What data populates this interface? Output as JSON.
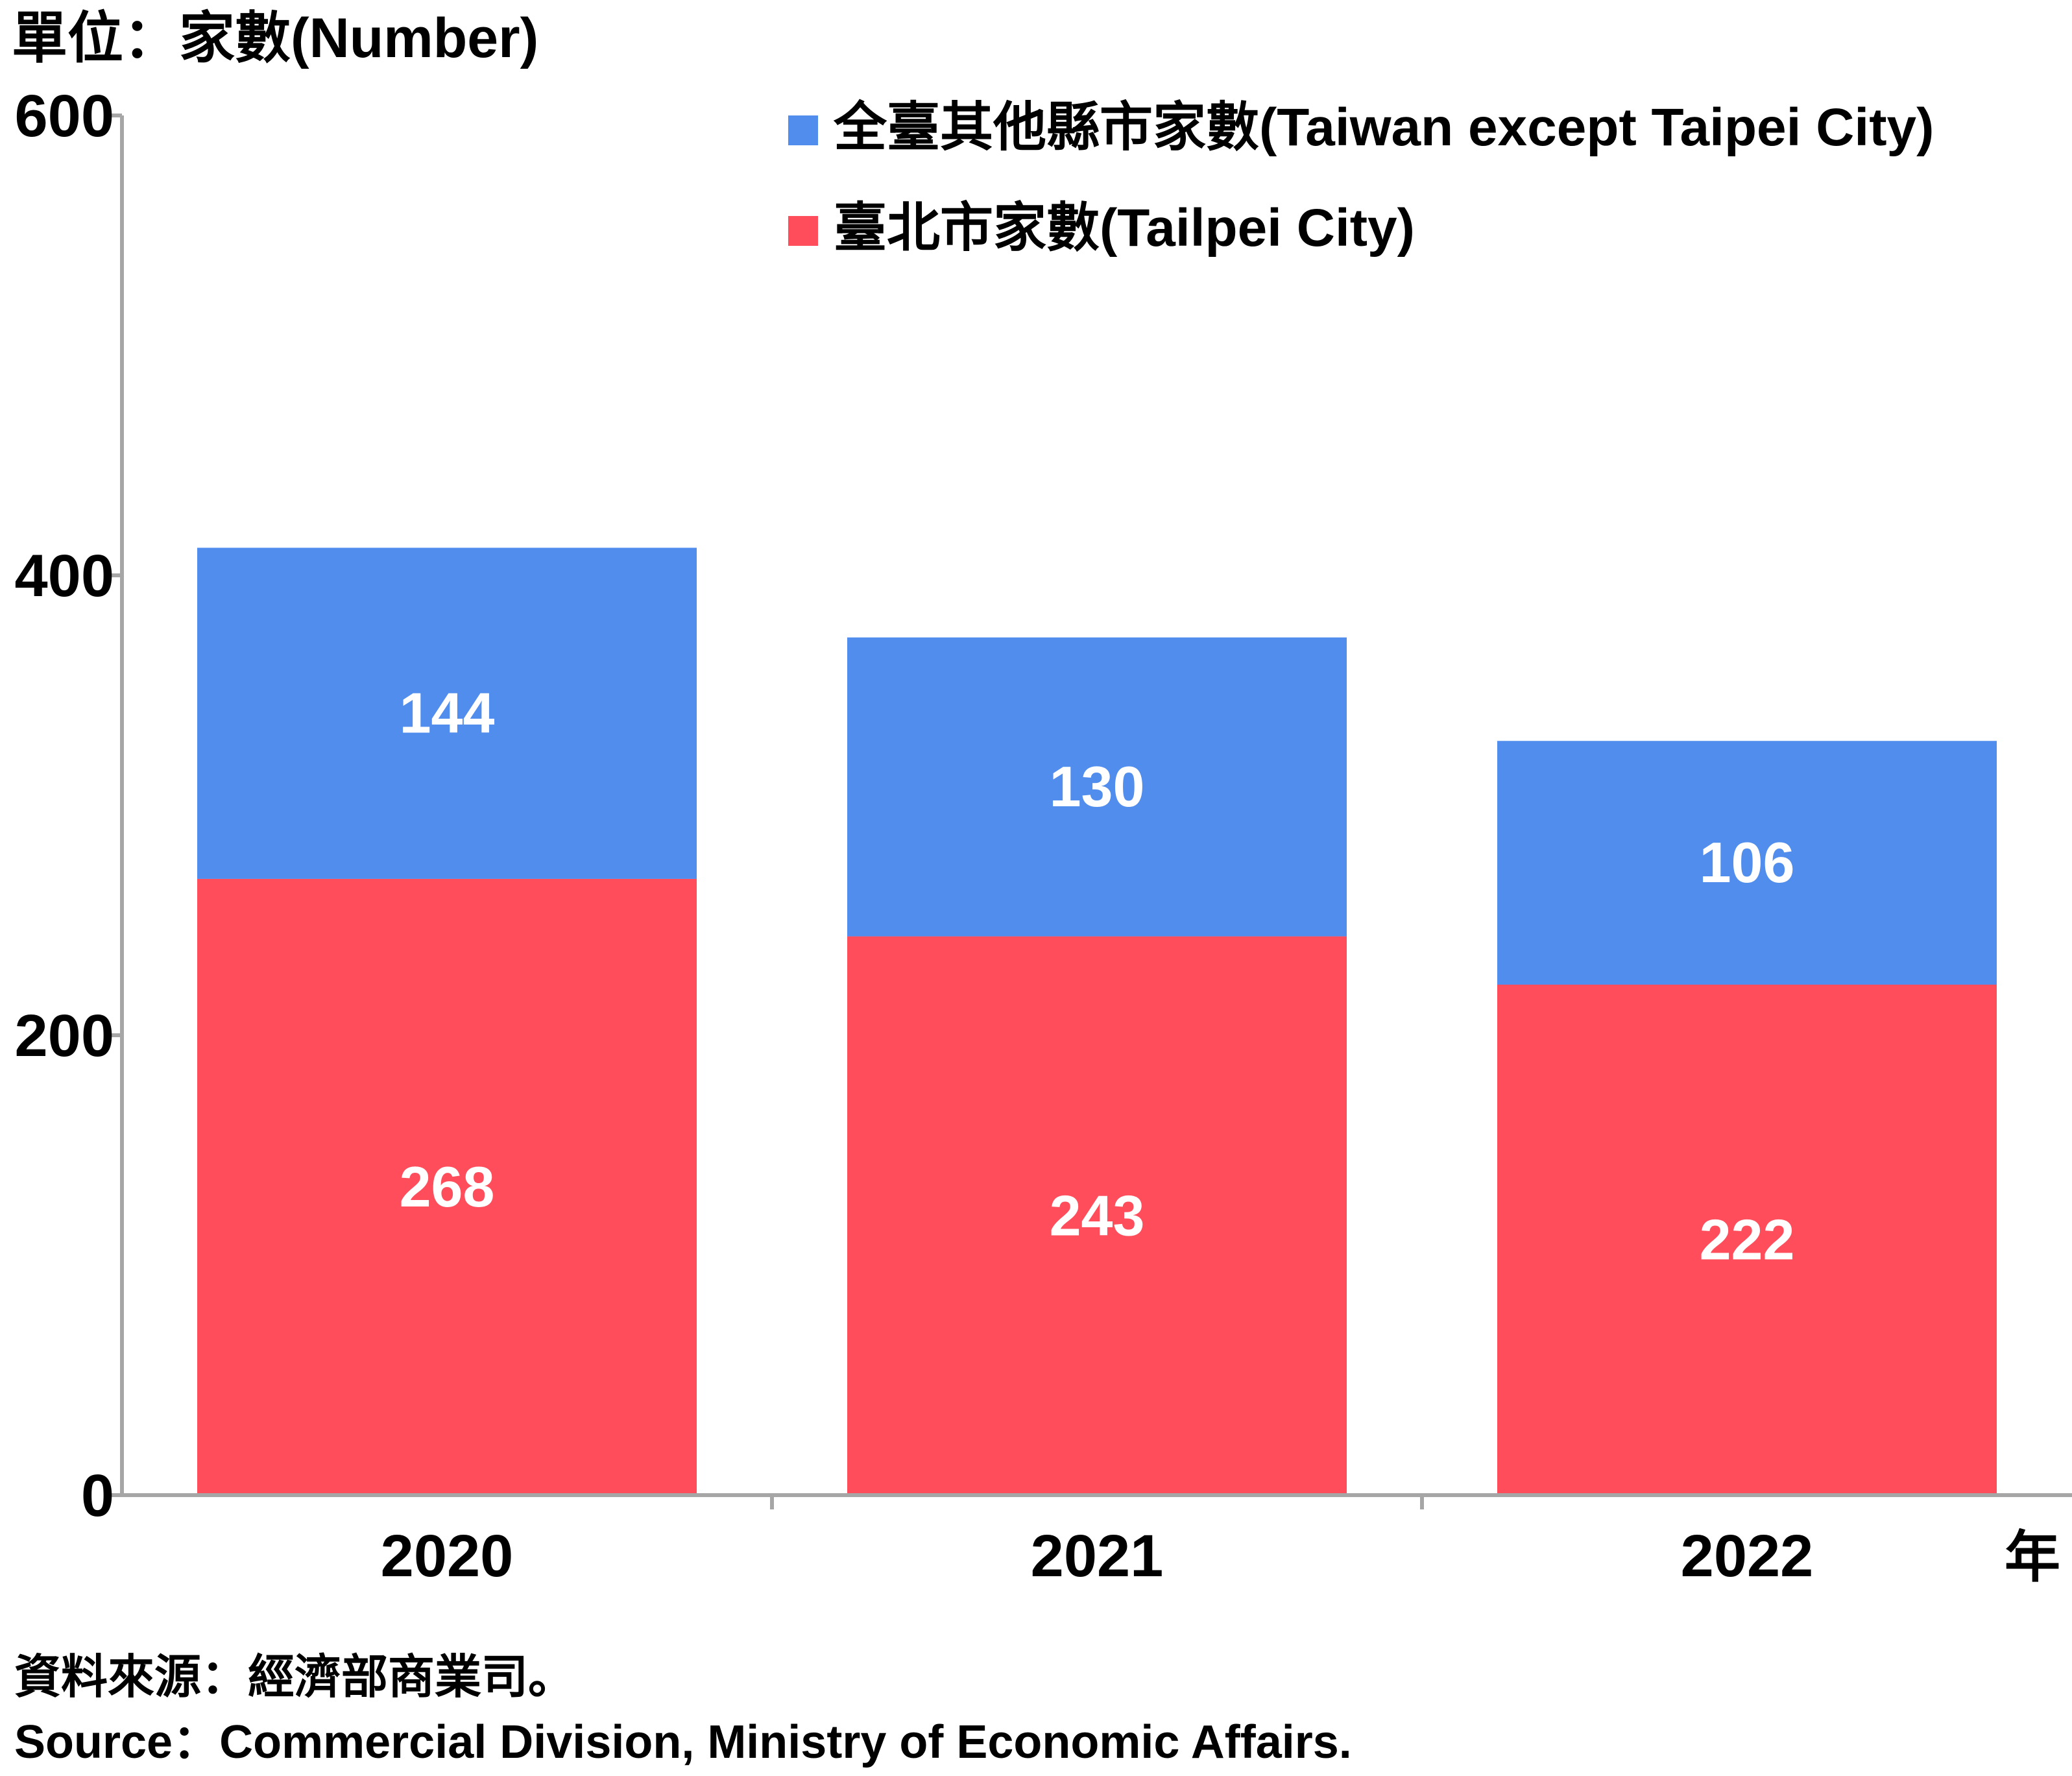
{
  "chart_data": {
    "type": "bar",
    "stacked": true,
    "unit_label": "單位：家數(Number)",
    "x_unit": "年",
    "categories": [
      "2020",
      "2021",
      "2022"
    ],
    "series": [
      {
        "name": "臺北市家數(Tailpei City)",
        "color": "#ff4d5b",
        "values": [
          268,
          243,
          222
        ]
      },
      {
        "name": "全臺其他縣市家數(Taiwan except Taipei City)",
        "color": "#508ded",
        "values": [
          144,
          130,
          106
        ]
      }
    ],
    "ylim": [
      0,
      600
    ],
    "yticks": [
      "0",
      "200",
      "400",
      "600"
    ],
    "grid": false,
    "legend_placement": "top-right",
    "axis_color": "#a6a6a6"
  },
  "source": {
    "zh": "資料來源：經濟部商業司。",
    "en": "Source：Commercial Division, Ministry of Economic Affairs."
  }
}
